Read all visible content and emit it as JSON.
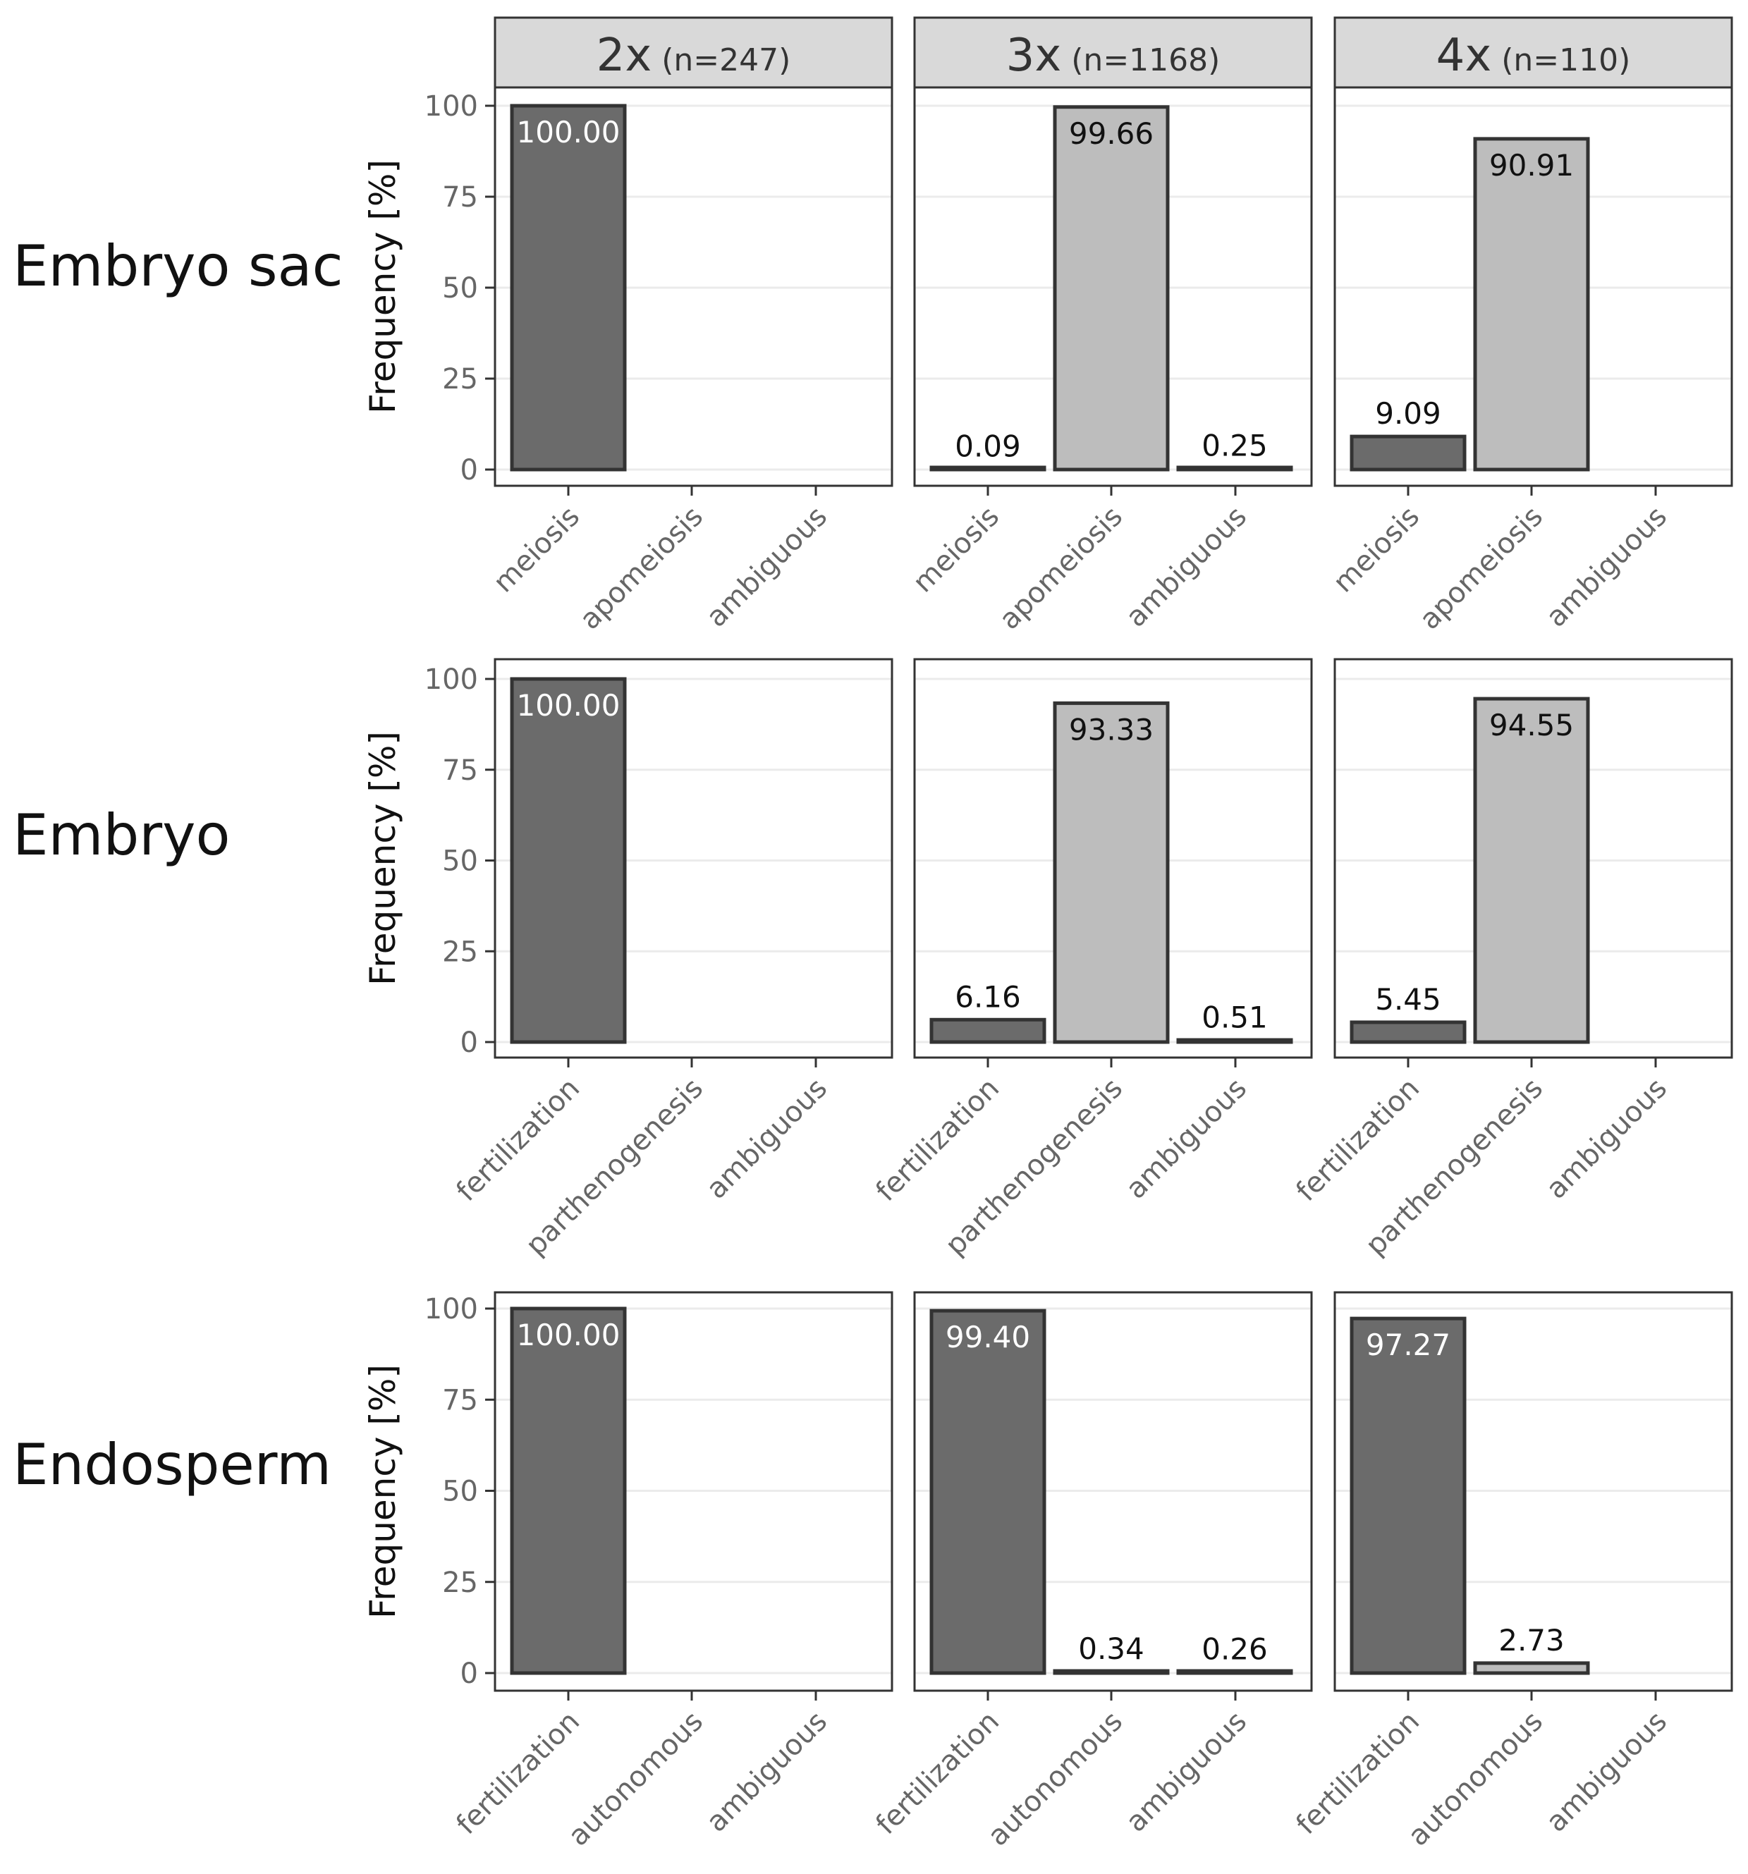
{
  "colors": {
    "dark_bar": "#6b6b6b",
    "light_bar": "#bdbdbd",
    "bar_border": "#333333",
    "strip_fill": "#d9d9d9",
    "grid": "#ebebeb",
    "panel_border": "#333333"
  },
  "chart_data": {
    "type": "bar",
    "ylabel": "Frequency [%]",
    "ylim": [
      0,
      100
    ],
    "yticks": [
      "0",
      "25",
      "50",
      "75",
      "100"
    ],
    "grid": true,
    "columns": [
      {
        "ploidy": "2x",
        "n": "(n=247)"
      },
      {
        "ploidy": "3x",
        "n": "(n=1168)"
      },
      {
        "ploidy": "4x",
        "n": "(n=110)"
      }
    ],
    "rows": [
      {
        "label": "Embryo sac",
        "categories": [
          "meiosis",
          "apomeiosis",
          "ambiguous"
        ],
        "panels": [
          {
            "values": [
              100.0,
              null,
              null
            ],
            "labels": [
              "100.00",
              null,
              null
            ]
          },
          {
            "values": [
              0.09,
              99.66,
              0.25
            ],
            "labels": [
              "0.09",
              "99.66",
              "0.25"
            ]
          },
          {
            "values": [
              9.09,
              90.91,
              null
            ],
            "labels": [
              "9.09",
              "90.91",
              null
            ]
          }
        ]
      },
      {
        "label": "Embryo",
        "categories": [
          "fertilization",
          "parthenogenesis",
          "ambiguous"
        ],
        "panels": [
          {
            "values": [
              100.0,
              null,
              null
            ],
            "labels": [
              "100.00",
              null,
              null
            ]
          },
          {
            "values": [
              6.16,
              93.33,
              0.51
            ],
            "labels": [
              "6.16",
              "93.33",
              "0.51"
            ]
          },
          {
            "values": [
              5.45,
              94.55,
              null
            ],
            "labels": [
              "5.45",
              "94.55",
              null
            ]
          }
        ]
      },
      {
        "label": "Endosperm",
        "categories": [
          "fertilization",
          "autonomous",
          "ambiguous"
        ],
        "panels": [
          {
            "values": [
              100.0,
              null,
              null
            ],
            "labels": [
              "100.00",
              null,
              null
            ]
          },
          {
            "values": [
              99.4,
              0.34,
              0.26
            ],
            "labels": [
              "99.40",
              "0.34",
              "0.26"
            ]
          },
          {
            "values": [
              97.27,
              2.73,
              null
            ],
            "labels": [
              "97.27",
              "2.73",
              null
            ]
          }
        ]
      }
    ]
  }
}
